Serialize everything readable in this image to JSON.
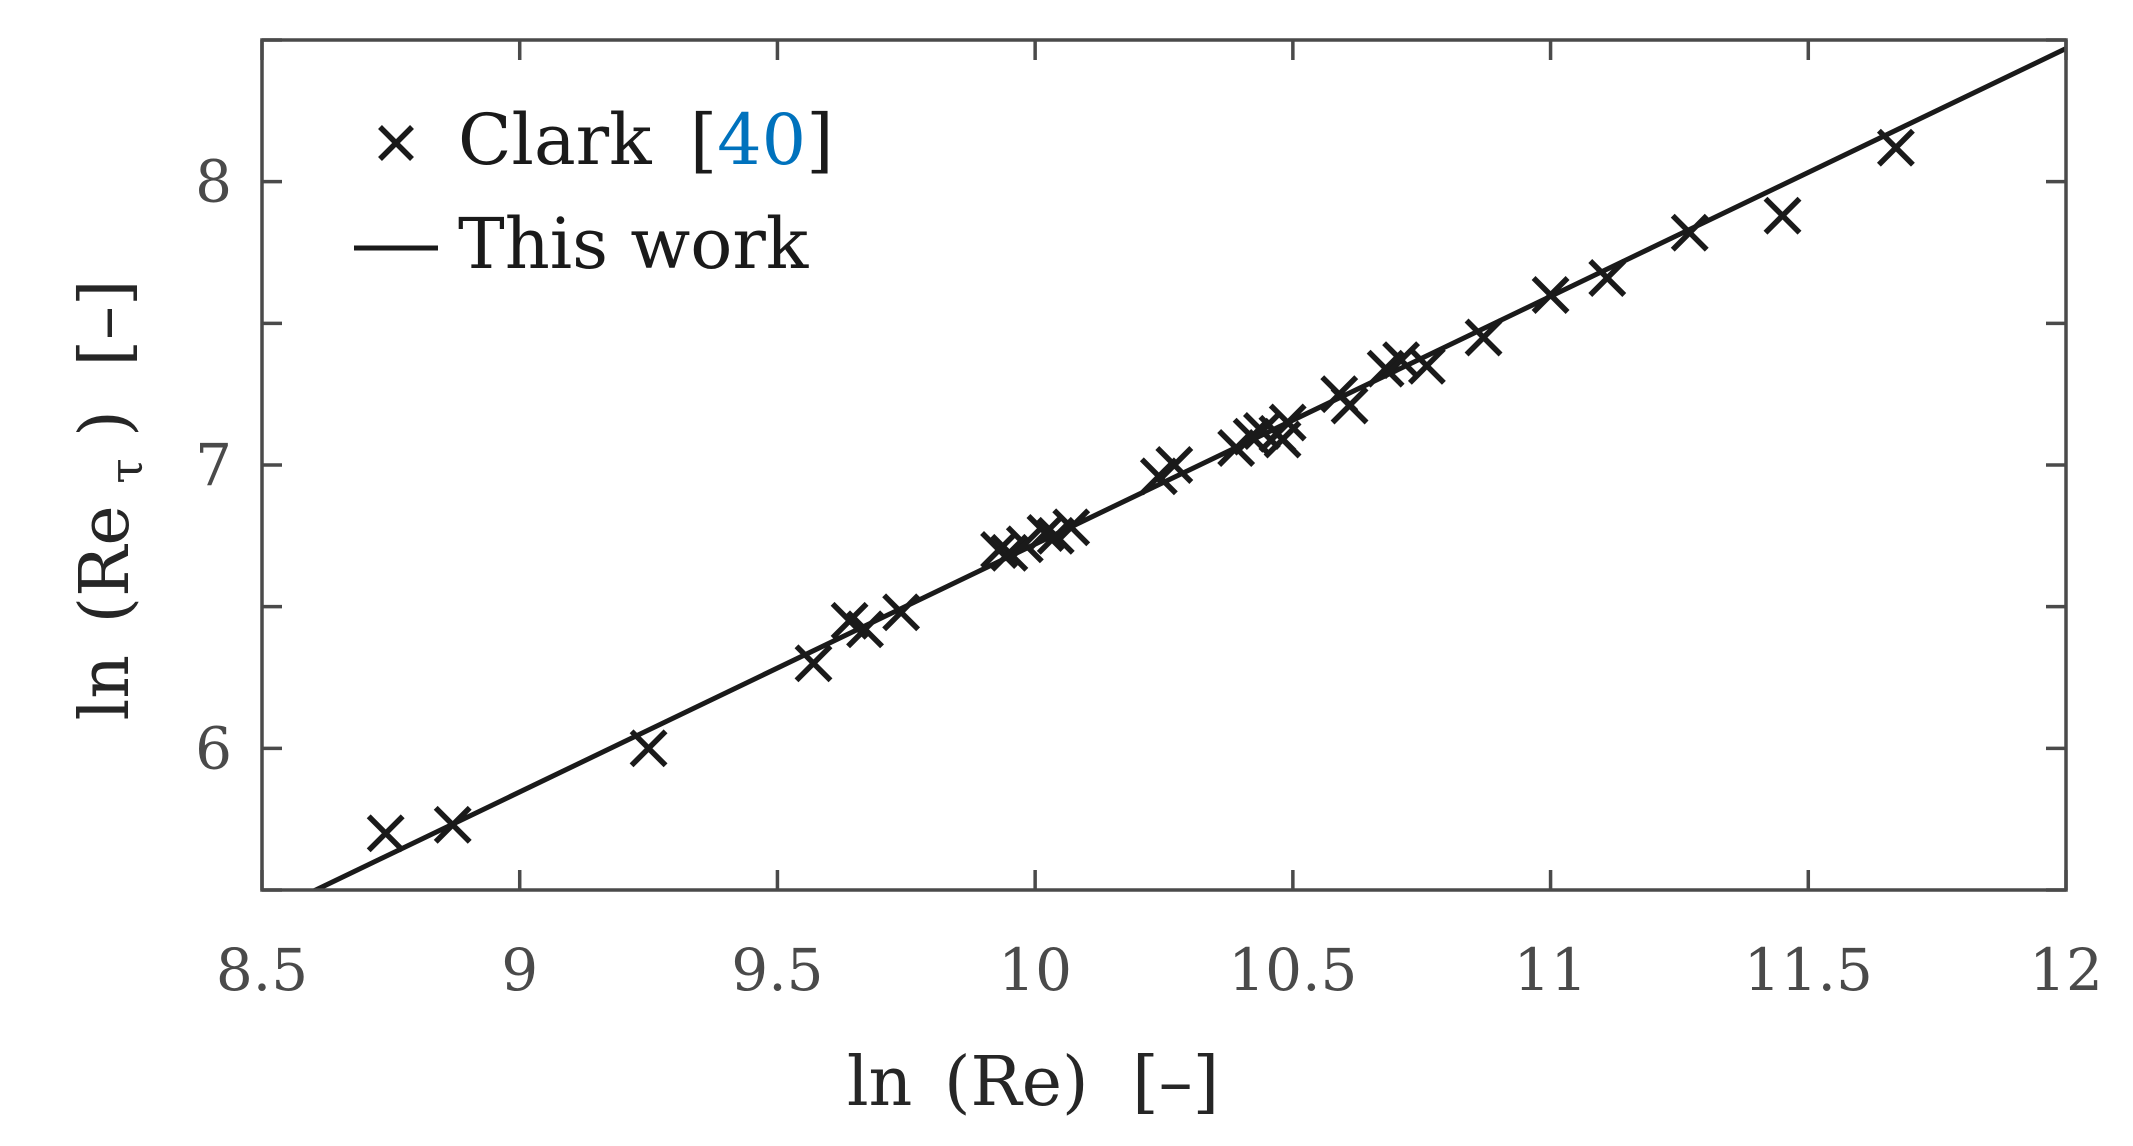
{
  "chart_data": {
    "type": "scatter",
    "xlabel_parts": [
      "ln",
      "(Re)",
      "[–]"
    ],
    "ylabel_parts": [
      "ln",
      "(Re",
      "τ",
      ")",
      "[–]"
    ],
    "xlim": [
      8.5,
      12
    ],
    "ylim": [
      5.5,
      8.5
    ],
    "xticks": [
      8.5,
      9,
      9.5,
      10,
      10.5,
      11,
      11.5,
      12
    ],
    "xtick_labels": [
      "8.5",
      "9",
      "9.5",
      "10",
      "10.5",
      "11",
      "11.5",
      "12"
    ],
    "yticks": [
      6,
      7,
      8
    ],
    "ytick_labels": [
      "6",
      "7",
      "8"
    ],
    "grid": false,
    "legend_position": "top-left",
    "colors": {
      "axes": "#4a4a4a",
      "data": "#1a1a1a",
      "reference_link": "#0072bd"
    },
    "series": [
      {
        "name": "Clark",
        "citation": "40",
        "type": "scatter",
        "marker": "x",
        "points": [
          [
            8.74,
            5.7
          ],
          [
            8.87,
            5.73
          ],
          [
            9.25,
            6.0
          ],
          [
            9.57,
            6.3
          ],
          [
            9.64,
            6.45
          ],
          [
            9.67,
            6.42
          ],
          [
            9.74,
            6.48
          ],
          [
            9.93,
            6.7
          ],
          [
            9.95,
            6.69
          ],
          [
            9.98,
            6.72
          ],
          [
            10.02,
            6.76
          ],
          [
            10.04,
            6.75
          ],
          [
            10.07,
            6.78
          ],
          [
            10.24,
            6.96
          ],
          [
            10.27,
            7.0
          ],
          [
            10.39,
            7.06
          ],
          [
            10.42,
            7.1
          ],
          [
            10.44,
            7.12
          ],
          [
            10.47,
            7.11
          ],
          [
            10.48,
            7.09
          ],
          [
            10.49,
            7.15
          ],
          [
            10.59,
            7.25
          ],
          [
            10.61,
            7.21
          ],
          [
            10.68,
            7.34
          ],
          [
            10.71,
            7.37
          ],
          [
            10.76,
            7.35
          ],
          [
            10.87,
            7.45
          ],
          [
            11.0,
            7.6
          ],
          [
            11.11,
            7.66
          ],
          [
            11.27,
            7.82
          ],
          [
            11.45,
            7.88
          ],
          [
            11.67,
            8.12
          ]
        ]
      },
      {
        "name": "This work",
        "type": "line",
        "x": [
          8.57,
          12.0
        ],
        "y": [
          5.47,
          8.47
        ]
      }
    ]
  }
}
